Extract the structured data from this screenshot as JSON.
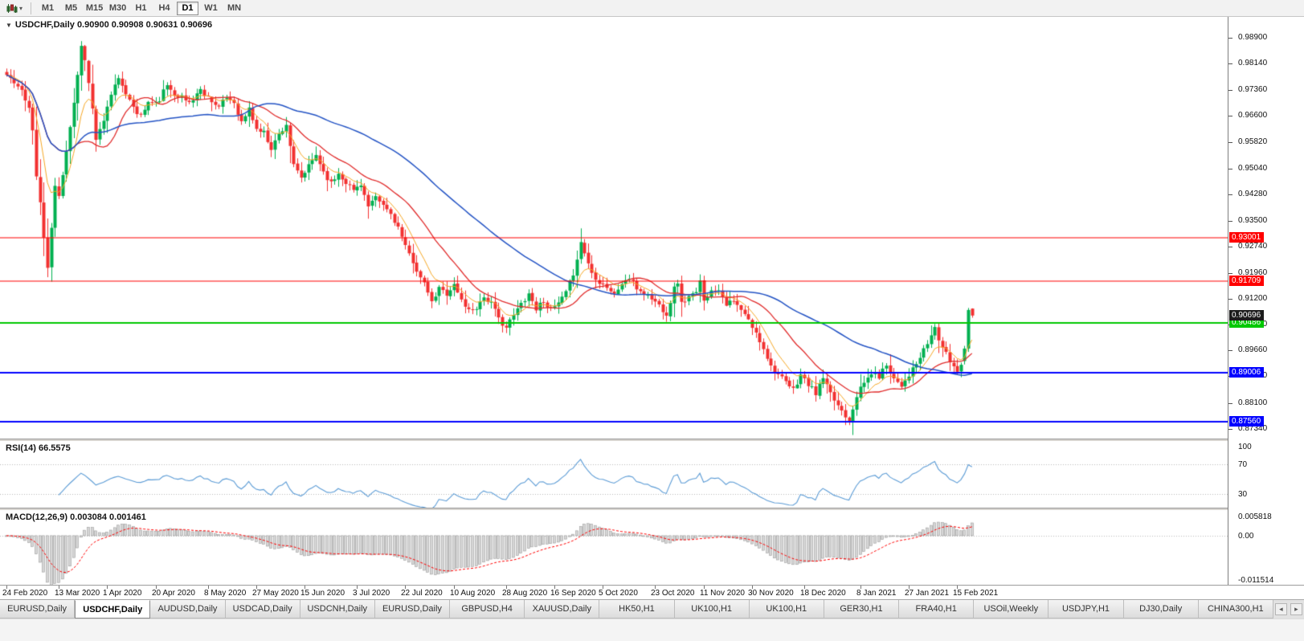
{
  "toolbar": {
    "timeframes": [
      "M1",
      "M5",
      "M15",
      "M30",
      "H1",
      "H4",
      "D1",
      "W1",
      "MN"
    ],
    "active_timeframe": "D1"
  },
  "chart": {
    "title": "USDCHF,Daily 0.90900 0.90908 0.90631 0.90696",
    "symbol": "USDCHF",
    "period": "Daily",
    "open": "0.90900",
    "high": "0.90908",
    "low": "0.90631",
    "close": "0.90696"
  },
  "chart_data": {
    "type": "candlestick",
    "symbol": "USDCHF",
    "timeframe": "Daily",
    "num_candles": 260,
    "ylim": [
      0.8706,
      0.9952
    ],
    "price_ticks": [
      0.989,
      0.9814,
      0.9736,
      0.966,
      0.9582,
      0.9504,
      0.9428,
      0.935,
      0.9274,
      0.9196,
      0.912,
      0.9044,
      0.8966,
      0.889,
      0.881,
      0.8734
    ],
    "hlines": [
      {
        "price": 0.93001,
        "label": "0.93001",
        "color": "#ff0000",
        "width": 1
      },
      {
        "price": 0.91709,
        "label": "0.91709",
        "color": "#ff0000",
        "width": 1
      },
      {
        "price": 0.90486,
        "label": "0.90486",
        "color": "#00c800",
        "width": 2
      },
      {
        "price": 0.89006,
        "label": "0.89006",
        "color": "#0000ff",
        "width": 2
      },
      {
        "price": 0.8756,
        "label": "0.87560",
        "color": "#0000ff",
        "width": 2
      }
    ],
    "current_price": {
      "price": 0.90696,
      "label": "0.90696",
      "badge_color": "#1c1c1c"
    },
    "date_labels": [
      [
        "24 Feb 2020",
        0
      ],
      [
        "13 Mar 2020",
        14
      ],
      [
        "1 Apr 2020",
        27
      ],
      [
        "20 Apr 2020",
        40
      ],
      [
        "8 May 2020",
        54
      ],
      [
        "27 May 2020",
        67
      ],
      [
        "15 Jun 2020",
        80
      ],
      [
        "3 Jul 2020",
        94
      ],
      [
        "22 Jul 2020",
        107
      ],
      [
        "10 Aug 2020",
        120
      ],
      [
        "28 Aug 2020",
        134
      ],
      [
        "16 Sep 2020",
        147
      ],
      [
        "5 Oct 2020",
        160
      ],
      [
        "23 Oct 2020",
        174
      ],
      [
        "11 Nov 2020",
        187
      ],
      [
        "30 Nov 2020",
        200
      ],
      [
        "18 Dec 2020",
        214
      ],
      [
        "8 Jan 2021",
        229
      ],
      [
        "27 Jan 2021",
        242
      ],
      [
        "15 Feb 2021",
        255
      ]
    ],
    "price_path": [
      [
        0,
        0.978
      ],
      [
        3,
        0.9745
      ],
      [
        6,
        0.969
      ],
      [
        9,
        0.9405
      ],
      [
        10,
        0.93
      ],
      [
        11,
        0.9205
      ],
      [
        12,
        0.933
      ],
      [
        13,
        0.945
      ],
      [
        14,
        0.942
      ],
      [
        16,
        0.956
      ],
      [
        18,
        0.97
      ],
      [
        20,
        0.9865
      ],
      [
        21,
        0.983
      ],
      [
        23,
        0.968
      ],
      [
        24,
        0.959
      ],
      [
        26,
        0.964
      ],
      [
        28,
        0.9725
      ],
      [
        30,
        0.9775
      ],
      [
        33,
        0.97
      ],
      [
        36,
        0.966
      ],
      [
        38,
        0.97
      ],
      [
        40,
        0.9695
      ],
      [
        43,
        0.9745
      ],
      [
        46,
        0.972
      ],
      [
        49,
        0.97
      ],
      [
        52,
        0.9735
      ],
      [
        54,
        0.9715
      ],
      [
        57,
        0.9685
      ],
      [
        59,
        0.9715
      ],
      [
        61,
        0.97
      ],
      [
        63,
        0.964
      ],
      [
        65,
        0.968
      ],
      [
        67,
        0.962
      ],
      [
        69,
        0.961
      ],
      [
        71,
        0.9565
      ],
      [
        73,
        0.9605
      ],
      [
        75,
        0.9635
      ],
      [
        77,
        0.951
      ],
      [
        79,
        0.9475
      ],
      [
        81,
        0.951
      ],
      [
        83,
        0.9545
      ],
      [
        85,
        0.9495
      ],
      [
        87,
        0.946
      ],
      [
        89,
        0.949
      ],
      [
        91,
        0.9465
      ],
      [
        93,
        0.944
      ],
      [
        95,
        0.946
      ],
      [
        97,
        0.939
      ],
      [
        99,
        0.9415
      ],
      [
        101,
        0.9395
      ],
      [
        103,
        0.937
      ],
      [
        105,
        0.933
      ],
      [
        107,
        0.927
      ],
      [
        109,
        0.923
      ],
      [
        111,
        0.918
      ],
      [
        113,
        0.914
      ],
      [
        114,
        0.9105
      ],
      [
        116,
        0.915
      ],
      [
        118,
        0.9135
      ],
      [
        120,
        0.916
      ],
      [
        122,
        0.9115
      ],
      [
        124,
        0.9085
      ],
      [
        126,
        0.9095
      ],
      [
        128,
        0.9125
      ],
      [
        130,
        0.9105
      ],
      [
        132,
        0.906
      ],
      [
        134,
        0.9035
      ],
      [
        136,
        0.907
      ],
      [
        138,
        0.9105
      ],
      [
        140,
        0.9135
      ],
      [
        142,
        0.909
      ],
      [
        144,
        0.9115
      ],
      [
        146,
        0.9085
      ],
      [
        148,
        0.9105
      ],
      [
        150,
        0.9135
      ],
      [
        152,
        0.9195
      ],
      [
        154,
        0.9285
      ],
      [
        155,
        0.9255
      ],
      [
        157,
        0.9195
      ],
      [
        159,
        0.917
      ],
      [
        161,
        0.9155
      ],
      [
        163,
        0.913
      ],
      [
        165,
        0.9165
      ],
      [
        167,
        0.918
      ],
      [
        169,
        0.915
      ],
      [
        171,
        0.9135
      ],
      [
        173,
        0.912
      ],
      [
        175,
        0.91
      ],
      [
        177,
        0.9075
      ],
      [
        179,
        0.915
      ],
      [
        180,
        0.917
      ],
      [
        181,
        0.9105
      ],
      [
        183,
        0.9125
      ],
      [
        185,
        0.9135
      ],
      [
        186,
        0.9168
      ],
      [
        187,
        0.912
      ],
      [
        189,
        0.914
      ],
      [
        191,
        0.915
      ],
      [
        193,
        0.9105
      ],
      [
        195,
        0.911
      ],
      [
        197,
        0.9085
      ],
      [
        199,
        0.9055
      ],
      [
        201,
        0.9015
      ],
      [
        203,
        0.8975
      ],
      [
        205,
        0.892
      ],
      [
        207,
        0.8895
      ],
      [
        209,
        0.887
      ],
      [
        211,
        0.885
      ],
      [
        213,
        0.8895
      ],
      [
        215,
        0.8865
      ],
      [
        217,
        0.884
      ],
      [
        219,
        0.8885
      ],
      [
        221,
        0.8835
      ],
      [
        223,
        0.8805
      ],
      [
        225,
        0.8775
      ],
      [
        226,
        0.8762
      ],
      [
        228,
        0.8835
      ],
      [
        230,
        0.887
      ],
      [
        232,
        0.89
      ],
      [
        234,
        0.889
      ],
      [
        236,
        0.8925
      ],
      [
        238,
        0.8885
      ],
      [
        240,
        0.8865
      ],
      [
        242,
        0.8895
      ],
      [
        244,
        0.8925
      ],
      [
        246,
        0.8965
      ],
      [
        248,
        0.901
      ],
      [
        249,
        0.9035
      ],
      [
        250,
        0.9
      ],
      [
        251,
        0.8975
      ],
      [
        253,
        0.8935
      ],
      [
        255,
        0.8905
      ],
      [
        256,
        0.893
      ],
      [
        257,
        0.8965
      ],
      [
        259,
        0.907
      ]
    ],
    "final_candles": [
      {
        "o": 0.8935,
        "h": 0.898,
        "l": 0.8925,
        "c": 0.8972
      },
      {
        "o": 0.8972,
        "h": 0.9092,
        "l": 0.8962,
        "c": 0.9086
      },
      {
        "o": 0.909,
        "h": 0.90908,
        "l": 0.90631,
        "c": 0.90696
      }
    ],
    "seed": 11,
    "indicators": {
      "ma_fast_period": 8,
      "ma_mid_period": 20,
      "ma_slow_period": 55,
      "rsi": {
        "label": "RSI(14) 66.5575",
        "period": 14,
        "levels": [
          70,
          30
        ],
        "axis_labels": [
          [
            "100",
            100
          ],
          [
            "70",
            70
          ],
          [
            "30",
            30
          ]
        ],
        "range": [
          12,
          100
        ]
      },
      "macd": {
        "label": "MACD(12,26,9) 0.003084 0.001461",
        "fast": 12,
        "slow": 26,
        "signal": 9,
        "axis_labels": [
          [
            "0.005818",
            0.005818
          ],
          [
            "0.00",
            0
          ],
          [
            "-0.011514",
            -0.011514
          ]
        ],
        "range": [
          -0.011514,
          0.005818
        ]
      }
    },
    "colors": {
      "up_candle": "#00b050",
      "down_candle": "#f23030",
      "ma_fast": "#f5a623",
      "ma_mid": "#e02b2b",
      "ma_slow": "#2353c4",
      "rsi_line": "#5b9bd5",
      "level_line": "#b8b8b8",
      "macd_hist_fill": "#d6d6d6",
      "macd_hist_stroke": "#9b9b9b",
      "macd_signal": "#ff0000"
    }
  },
  "tab_bar": {
    "tabs": [
      "EURUSD,Daily",
      "USDCHF,Daily",
      "AUDUSD,Daily",
      "USDCAD,Daily",
      "USDCNH,Daily",
      "EURUSD,Daily",
      "GBPUSD,H4",
      "XAUUSD,Daily",
      "HK50,H1",
      "UK100,H1",
      "UK100,H1",
      "GER30,H1",
      "FRA40,H1",
      "USOil,Weekly",
      "USDJPY,H1",
      "DJ30,Daily",
      "CHINA300,H1"
    ],
    "active_index": 1,
    "scroll_left": "◂",
    "scroll_right": "▸"
  }
}
